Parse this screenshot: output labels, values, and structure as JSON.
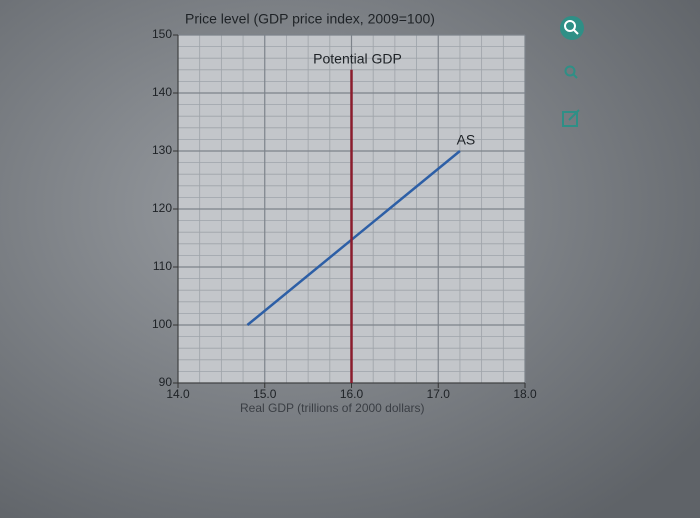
{
  "chart_data": {
    "type": "line",
    "title": "Price level (GDP price index, 2009=100)",
    "x_label": "Real GDP (trillions of 2000 dollars)",
    "xlim": [
      14.0,
      18.0
    ],
    "xticks": [
      {
        "value": 14.0,
        "label": "14.0"
      },
      {
        "value": 15.0,
        "label": "15.0"
      },
      {
        "value": 16.0,
        "label": "16.0"
      },
      {
        "value": 17.0,
        "label": "17.0"
      },
      {
        "value": 18.0,
        "label": "18.0"
      }
    ],
    "ylim": [
      90,
      150
    ],
    "yticks": [
      90,
      100,
      110,
      120,
      130,
      140,
      150
    ],
    "grid": true,
    "minor_grid": true,
    "series": [
      {
        "name": "AS",
        "color": "#2d5fa6",
        "x": [
          14.8,
          17.25
        ],
        "values": [
          100,
          130
        ]
      },
      {
        "name": "Potential GDP",
        "color": "#8a1c2c",
        "x": [
          16.0,
          16.0
        ],
        "values": [
          90,
          144
        ]
      }
    ]
  }
}
